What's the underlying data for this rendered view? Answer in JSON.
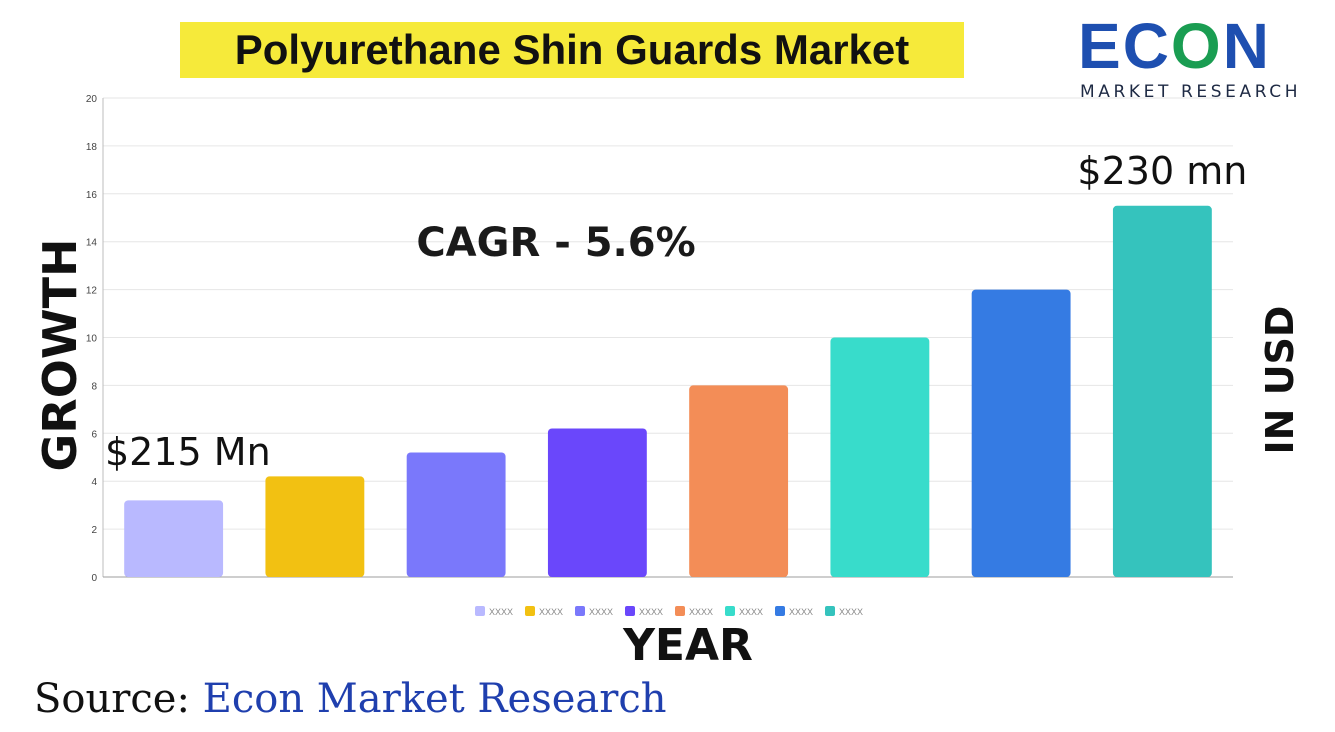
{
  "title": "Polyurethane Shin Guards Market",
  "logo": {
    "word_a": "EC",
    "word_b": "O",
    "word_c": "N",
    "sub": "MARKET RESEARCH"
  },
  "y_title": "GROWTH",
  "y_right_label": "IN USD",
  "x_title": "YEAR",
  "cagr_label": "CAGR - 5.6%",
  "start_label": "$215 Mn",
  "end_label": "$230 mn",
  "source_prefix": "Source:",
  "source_name": "Econ Market Research",
  "colors": {
    "title_highlight": "#f6ea3a",
    "brand_blue": "#1e4fb0",
    "source_blue": "#1f3fae"
  },
  "chart_data": {
    "type": "bar",
    "categories": [
      "XXXX",
      "XXXX",
      "XXXX",
      "XXXX",
      "XXXX",
      "XXXX",
      "XXXX",
      "XXXX"
    ],
    "values": [
      3.2,
      4.2,
      5.2,
      6.2,
      8.0,
      10.0,
      12.0,
      15.5
    ],
    "colors": [
      "#b9b9ff",
      "#f2c112",
      "#7a78fb",
      "#6a47fb",
      "#f38d57",
      "#38dccb",
      "#357be3",
      "#35c3bd"
    ],
    "ylim": [
      0,
      20
    ],
    "yticks": [
      0,
      2,
      4,
      6,
      8,
      10,
      12,
      14,
      16,
      18,
      20
    ],
    "grid": true,
    "legend_position": "bottom"
  }
}
